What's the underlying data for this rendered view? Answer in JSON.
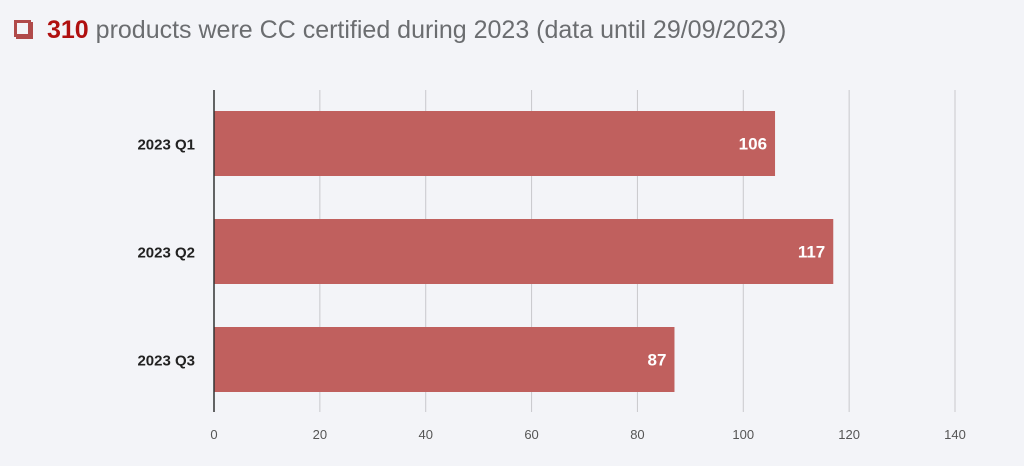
{
  "header": {
    "count": "310",
    "text": "products were CC certified during 2023 (data until 29/09/2023)",
    "accent": "#b01010"
  },
  "chart_data": {
    "type": "bar",
    "orientation": "horizontal",
    "categories": [
      "2023 Q1",
      "2023 Q2",
      "2023 Q3"
    ],
    "values": [
      106,
      117,
      87
    ],
    "xlim": [
      0,
      140
    ],
    "xticks": [
      0,
      20,
      40,
      60,
      80,
      100,
      120,
      140
    ],
    "grid": true,
    "bar_color": "#c0605e",
    "title": "",
    "xlabel": "",
    "ylabel": ""
  }
}
